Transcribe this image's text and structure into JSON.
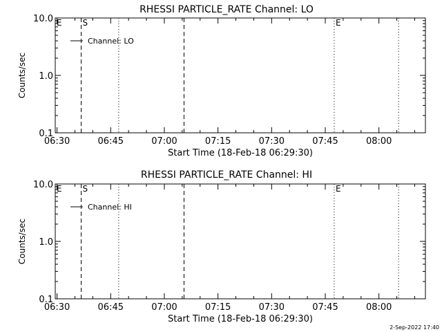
{
  "footer": {
    "date_stamp": "2-Sep-2022 17:40"
  },
  "chart_data": [
    {
      "type": "line",
      "title": "RHESSI PARTICLE_RATE Channel: LO",
      "xlabel": "Start Time (18-Feb-18 06:29:30)",
      "ylabel": "Counts/sec",
      "y_scale": "log",
      "ylim": [
        0.1,
        10.0
      ],
      "y_ticks": [
        "0.1",
        "1.0",
        "10.0"
      ],
      "xlim": [
        "06:29:30",
        "08:13:00"
      ],
      "x_ticks": [
        "06:30",
        "06:45",
        "07:00",
        "07:15",
        "07:30",
        "07:45",
        "08:00"
      ],
      "series": [
        {
          "name": "Channel: LO",
          "values": []
        }
      ],
      "legend": "top-left",
      "grid": false,
      "markers": [
        {
          "label": "E",
          "time": "06:29:30",
          "style": "none"
        },
        {
          "label": "S",
          "time": "06:36:45",
          "style": "dashed"
        },
        {
          "label": "",
          "time": "06:47:15",
          "style": "dotted"
        },
        {
          "label": "",
          "time": "07:05:30",
          "style": "dashed"
        },
        {
          "label": "E",
          "time": "07:47:30",
          "style": "dotted"
        },
        {
          "label": "",
          "time": "08:05:30",
          "style": "dotted"
        }
      ]
    },
    {
      "type": "line",
      "title": "RHESSI PARTICLE_RATE Channel: HI",
      "xlabel": "Start Time (18-Feb-18 06:29:30)",
      "ylabel": "Counts/sec",
      "y_scale": "log",
      "ylim": [
        0.1,
        10.0
      ],
      "y_ticks": [
        "0.1",
        "1.0",
        "10.0"
      ],
      "xlim": [
        "06:29:30",
        "08:13:00"
      ],
      "x_ticks": [
        "06:30",
        "06:45",
        "07:00",
        "07:15",
        "07:30",
        "07:45",
        "08:00"
      ],
      "series": [
        {
          "name": "Channel: HI",
          "values": []
        }
      ],
      "legend": "top-left",
      "grid": false,
      "markers": [
        {
          "label": "E",
          "time": "06:29:30",
          "style": "none"
        },
        {
          "label": "S",
          "time": "06:36:45",
          "style": "dashed"
        },
        {
          "label": "",
          "time": "06:47:15",
          "style": "dotted"
        },
        {
          "label": "",
          "time": "07:05:30",
          "style": "dashed"
        },
        {
          "label": "E",
          "time": "07:47:30",
          "style": "dotted"
        },
        {
          "label": "",
          "time": "08:05:30",
          "style": "dotted"
        }
      ]
    }
  ]
}
